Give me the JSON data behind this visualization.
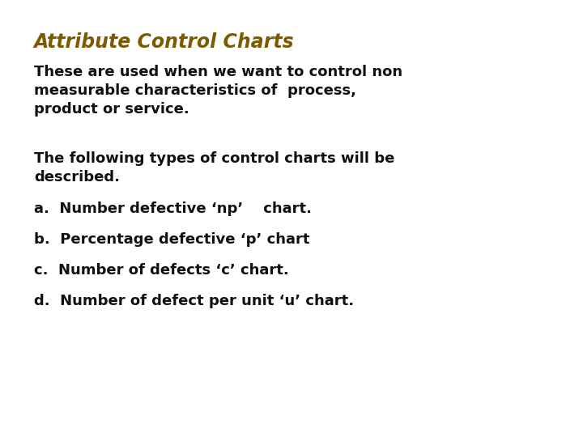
{
  "title": "Attribute Control Charts",
  "title_color": "#7B5A00",
  "title_fontsize": 17,
  "body_color": "#111111",
  "body_fontsize": 13,
  "background_color": "#ffffff",
  "paragraph1_lines": [
    "These are used when we want to control non",
    "measurable characteristics of  process,",
    "product or service."
  ],
  "paragraph2_lines": [
    "The following types of control charts will be",
    "described."
  ],
  "list_items": [
    "a.  Number defective ‘np’    chart.",
    "b.  Percentage defective ‘p’ chart",
    "c.  Number of defects ‘c’ chart.",
    "d.  Number of defect per unit ‘u’ chart."
  ]
}
